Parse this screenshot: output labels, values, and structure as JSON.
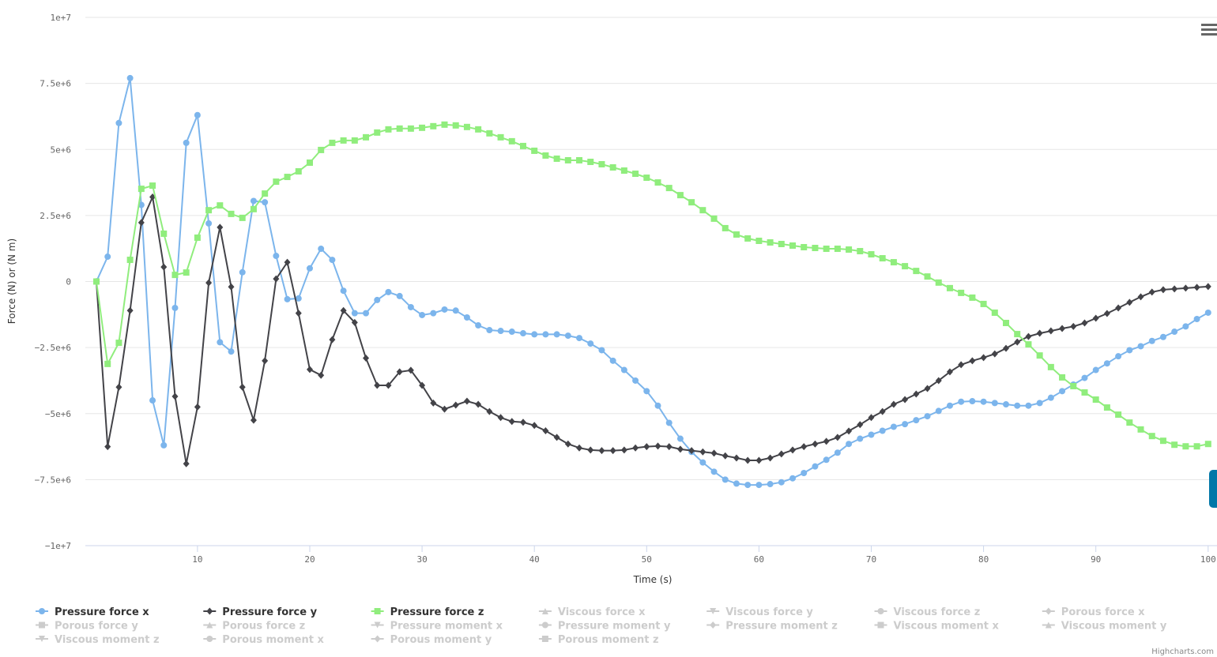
{
  "chart_data": {
    "type": "line",
    "title": "",
    "xlabel": "Time (s)",
    "ylabel": "Force (N) or (N m)",
    "xlim": [
      1,
      100
    ],
    "ylim": [
      -10000000,
      10000000
    ],
    "x_ticks": [
      "10",
      "20",
      "30",
      "40",
      "50",
      "60",
      "70",
      "80",
      "90",
      "100"
    ],
    "y_ticks": [
      "1e+7",
      "7.5e+6",
      "5e+6",
      "2.5e+6",
      "0",
      "−2.5e+6",
      "−5e+6",
      "−7.5e+6",
      "−1e+7"
    ],
    "grid": true,
    "legend_placement": "bottom",
    "values_multiplier": 1000000,
    "series": [
      {
        "name": "Pressure force x",
        "color": "#7cb5ec",
        "symbol": "circle",
        "visible": true,
        "values": [
          0,
          0.94,
          6.0,
          7.7,
          2.9,
          -4.5,
          -6.2,
          -1.0,
          5.25,
          6.3,
          2.2,
          -2.3,
          -2.65,
          0.35,
          3.05,
          3.0,
          0.97,
          -0.67,
          -0.64,
          0.5,
          1.24,
          0.82,
          -0.35,
          -1.2,
          -1.2,
          -0.7,
          -0.4,
          -0.55,
          -0.97,
          -1.27,
          -1.2,
          -1.06,
          -1.1,
          -1.36,
          -1.66,
          -1.84,
          -1.87,
          -1.9,
          -1.96,
          -2.0,
          -2.0,
          -2.0,
          -2.05,
          -2.14,
          -2.35,
          -2.6,
          -3.0,
          -3.35,
          -3.75,
          -4.15,
          -4.7,
          -5.35,
          -5.95,
          -6.45,
          -6.85,
          -7.2,
          -7.5,
          -7.65,
          -7.7,
          -7.7,
          -7.67,
          -7.6,
          -7.45,
          -7.25,
          -7.0,
          -6.75,
          -6.48,
          -6.15,
          -5.95,
          -5.8,
          -5.65,
          -5.5,
          -5.4,
          -5.25,
          -5.1,
          -4.9,
          -4.7,
          -4.55,
          -4.53,
          -4.55,
          -4.6,
          -4.65,
          -4.7,
          -4.7,
          -4.6,
          -4.4,
          -4.15,
          -3.9,
          -3.65,
          -3.35,
          -3.1,
          -2.83,
          -2.6,
          -2.45,
          -2.25,
          -2.1,
          -1.9,
          -1.7,
          -1.42,
          -1.18
        ]
      },
      {
        "name": "Pressure force y",
        "color": "#434348",
        "symbol": "diamond",
        "visible": true,
        "values": [
          0,
          -6.25,
          -4.0,
          -1.1,
          2.23,
          3.2,
          0.55,
          -4.35,
          -6.9,
          -4.75,
          -0.05,
          2.05,
          -0.2,
          -4.0,
          -5.25,
          -3.0,
          0.1,
          0.73,
          -1.2,
          -3.33,
          -3.55,
          -2.2,
          -1.1,
          -1.55,
          -2.9,
          -3.93,
          -3.93,
          -3.42,
          -3.36,
          -3.93,
          -4.6,
          -4.83,
          -4.68,
          -4.53,
          -4.65,
          -4.92,
          -5.15,
          -5.3,
          -5.33,
          -5.45,
          -5.65,
          -5.9,
          -6.15,
          -6.3,
          -6.38,
          -6.4,
          -6.4,
          -6.38,
          -6.3,
          -6.25,
          -6.23,
          -6.25,
          -6.35,
          -6.4,
          -6.45,
          -6.5,
          -6.6,
          -6.68,
          -6.77,
          -6.77,
          -6.68,
          -6.53,
          -6.38,
          -6.25,
          -6.15,
          -6.05,
          -5.9,
          -5.66,
          -5.42,
          -5.15,
          -4.92,
          -4.65,
          -4.47,
          -4.26,
          -4.05,
          -3.75,
          -3.42,
          -3.15,
          -3.0,
          -2.88,
          -2.74,
          -2.53,
          -2.29,
          -2.08,
          -1.96,
          -1.87,
          -1.78,
          -1.7,
          -1.57,
          -1.39,
          -1.21,
          -1.0,
          -0.79,
          -0.58,
          -0.4,
          -0.31,
          -0.28,
          -0.25,
          -0.22,
          -0.19
        ]
      },
      {
        "name": "Pressure force z",
        "color": "#90ed7d",
        "symbol": "square",
        "visible": true,
        "values": [
          0,
          -3.12,
          -2.32,
          0.82,
          3.51,
          3.63,
          1.81,
          0.25,
          0.34,
          1.66,
          2.7,
          2.88,
          2.56,
          2.41,
          2.74,
          3.33,
          3.78,
          3.96,
          4.17,
          4.5,
          4.98,
          5.25,
          5.34,
          5.34,
          5.46,
          5.64,
          5.76,
          5.79,
          5.79,
          5.82,
          5.88,
          5.94,
          5.91,
          5.85,
          5.76,
          5.61,
          5.46,
          5.31,
          5.13,
          4.95,
          4.77,
          4.65,
          4.59,
          4.59,
          4.53,
          4.44,
          4.32,
          4.2,
          4.08,
          3.93,
          3.75,
          3.54,
          3.27,
          3.0,
          2.7,
          2.38,
          2.02,
          1.78,
          1.63,
          1.54,
          1.48,
          1.42,
          1.36,
          1.3,
          1.27,
          1.24,
          1.24,
          1.21,
          1.15,
          1.03,
          0.88,
          0.73,
          0.58,
          0.4,
          0.19,
          -0.04,
          -0.25,
          -0.43,
          -0.61,
          -0.85,
          -1.18,
          -1.57,
          -1.99,
          -2.38,
          -2.8,
          -3.24,
          -3.63,
          -3.96,
          -4.2,
          -4.47,
          -4.77,
          -5.04,
          -5.34,
          -5.6,
          -5.85,
          -6.03,
          -6.18,
          -6.24,
          -6.24,
          -6.15
        ]
      },
      {
        "name": "Viscous force x",
        "symbol": "triangle",
        "visible": false
      },
      {
        "name": "Viscous force y",
        "symbol": "triangle-down",
        "visible": false
      },
      {
        "name": "Viscous force z",
        "symbol": "circle",
        "visible": false
      },
      {
        "name": "Porous force x",
        "symbol": "diamond",
        "visible": false
      },
      {
        "name": "Porous force y",
        "symbol": "square",
        "visible": false
      },
      {
        "name": "Porous force z",
        "symbol": "triangle",
        "visible": false
      },
      {
        "name": "Pressure moment x",
        "symbol": "triangle-down",
        "visible": false
      },
      {
        "name": "Pressure moment y",
        "symbol": "circle",
        "visible": false
      },
      {
        "name": "Pressure moment z",
        "symbol": "diamond",
        "visible": false
      },
      {
        "name": "Viscous moment x",
        "symbol": "square",
        "visible": false
      },
      {
        "name": "Viscous moment y",
        "symbol": "triangle",
        "visible": false
      },
      {
        "name": "Viscous moment z",
        "symbol": "triangle-down",
        "visible": false
      },
      {
        "name": "Porous moment x",
        "symbol": "circle",
        "visible": false
      },
      {
        "name": "Porous moment y",
        "symbol": "diamond",
        "visible": false
      },
      {
        "name": "Porous moment z",
        "symbol": "square",
        "visible": false
      }
    ],
    "credit": "Highcharts.com"
  },
  "colors": {
    "grid": "#e6e6e6",
    "axis": "#ccd6eb",
    "hidden": "#cccccc",
    "export_button": "#0077a8"
  }
}
